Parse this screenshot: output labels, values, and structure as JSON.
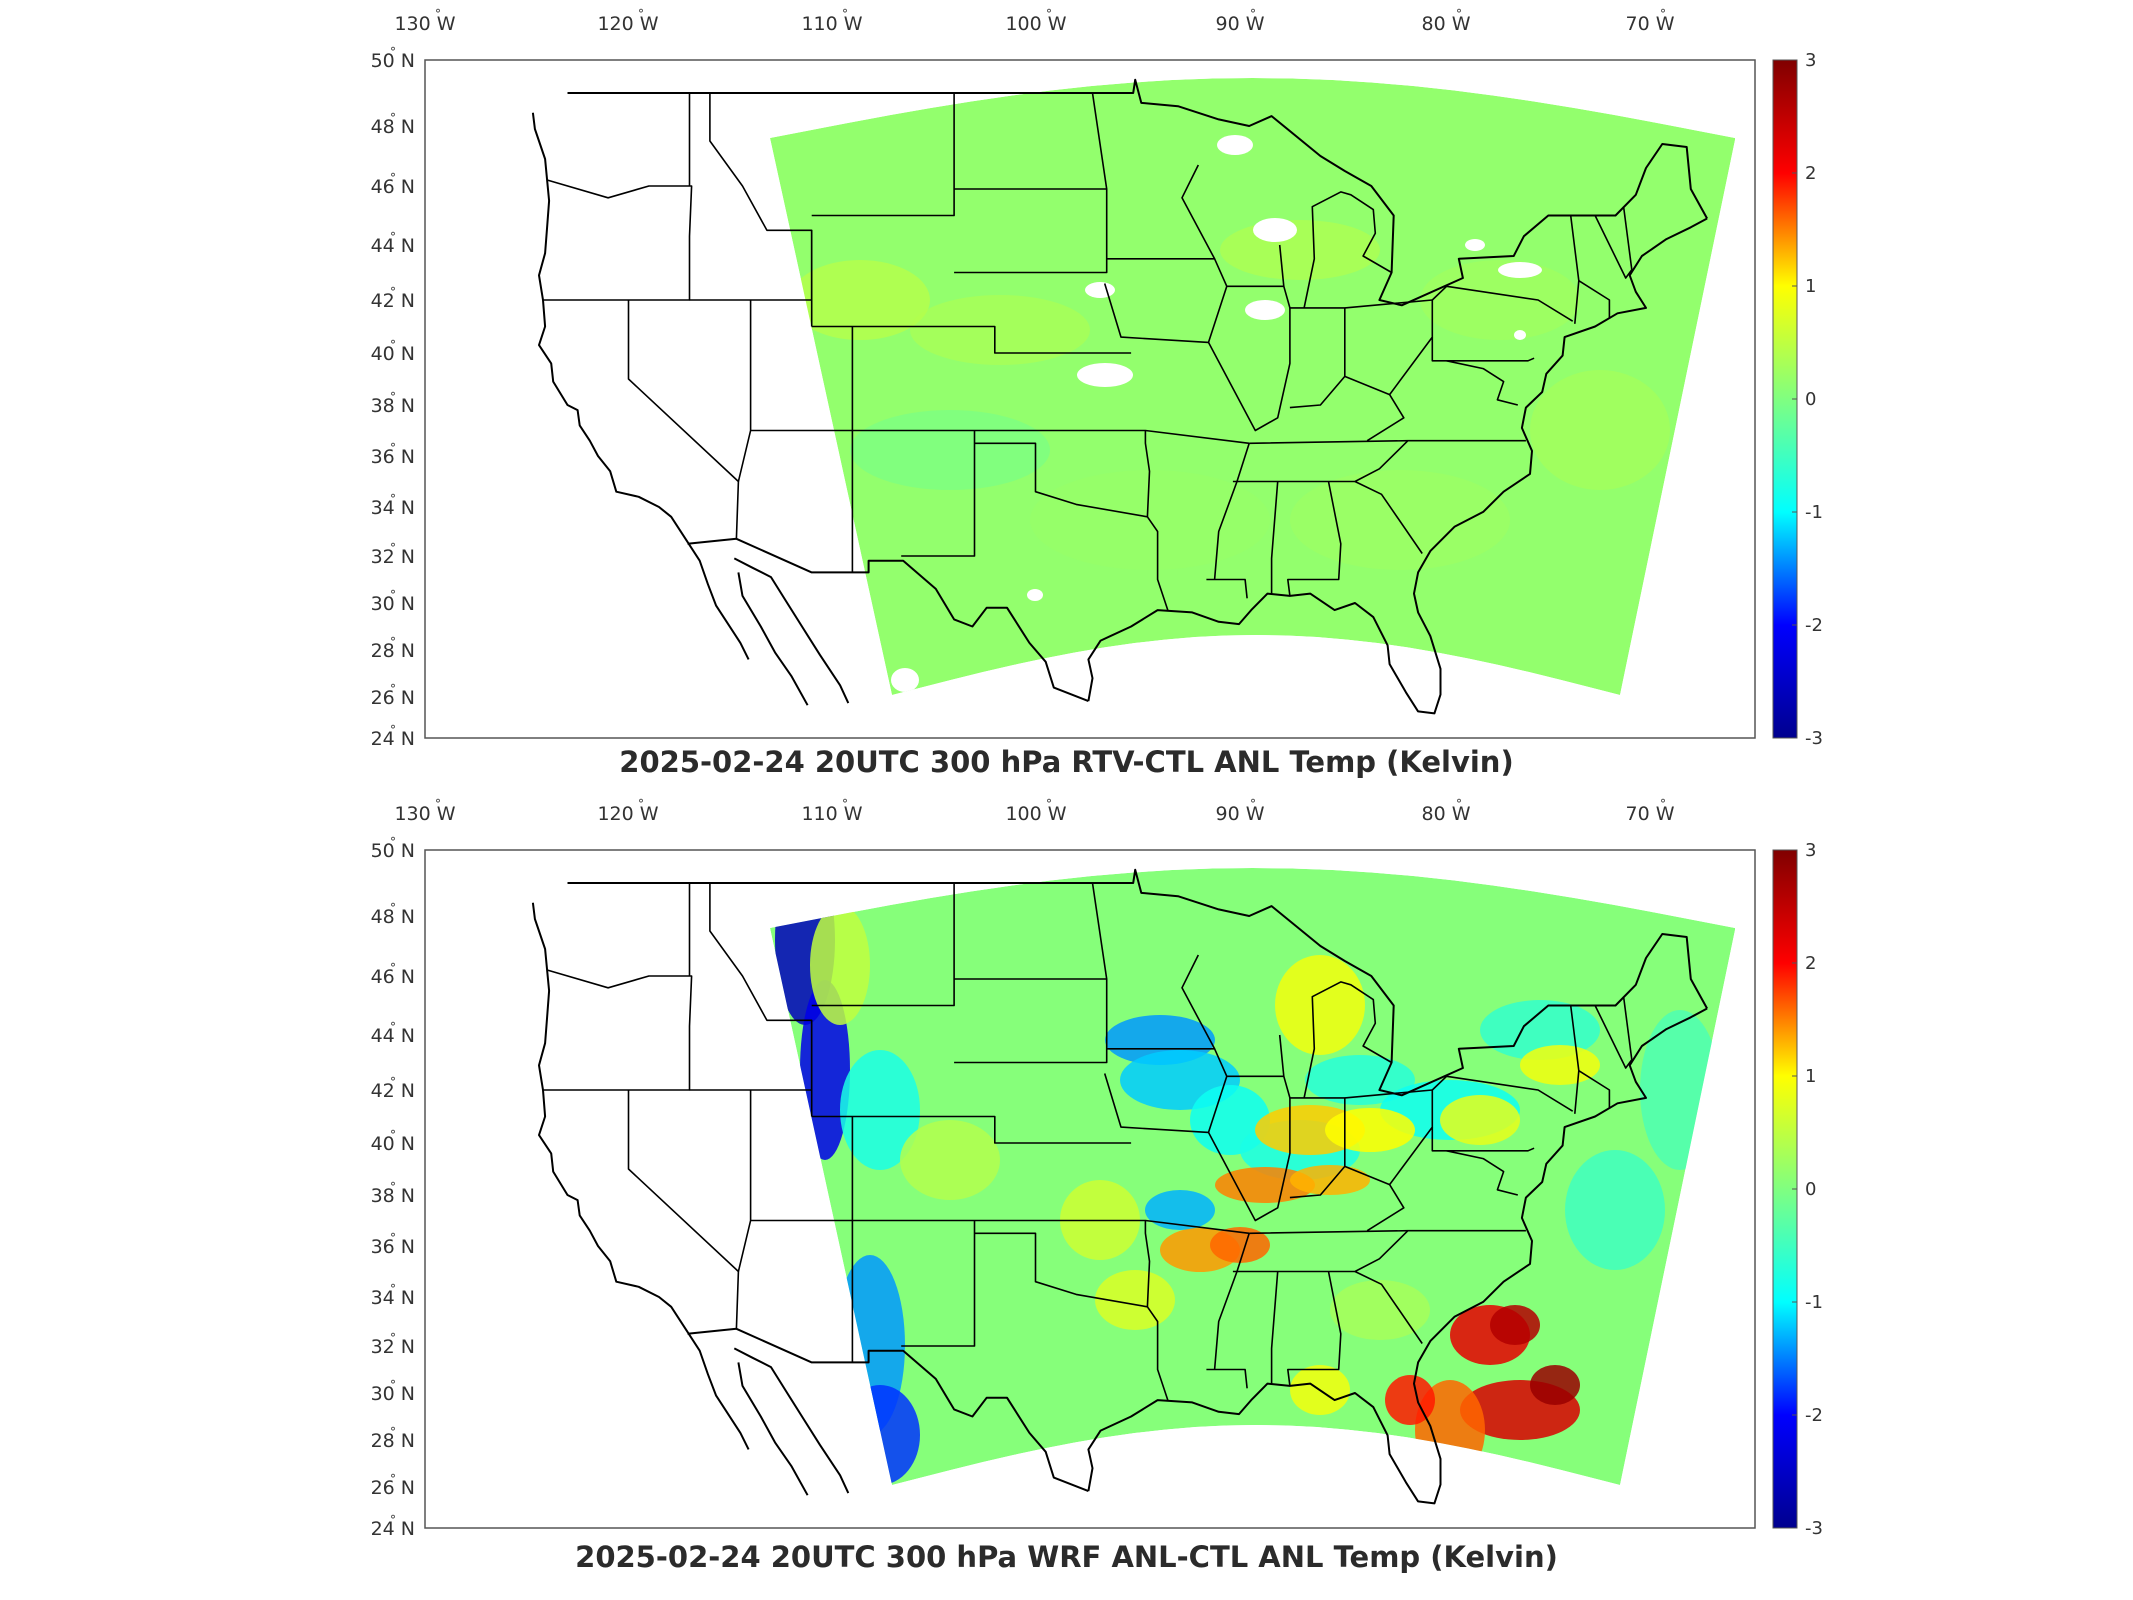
{
  "panels": [
    {
      "id": "top",
      "title": "2025-02-24 20UTC 300 hPa RTV-CTL ANL Temp (Kelvin)",
      "field": "near-zero",
      "lon_ticks": [
        "130",
        "120",
        "110",
        "100",
        "90",
        "80",
        "70"
      ],
      "lat_ticks": [
        "50",
        "48",
        "46",
        "44",
        "42",
        "40",
        "38",
        "36",
        "34",
        "32",
        "30",
        "28",
        "26",
        "24"
      ],
      "colorbar_ticks": [
        "3",
        "2",
        "1",
        "0",
        "-1",
        "-2",
        "-3"
      ]
    },
    {
      "id": "bottom",
      "title": "2025-02-24 20UTC 300 hPa WRF ANL-CTL ANL Temp (Kelvin)",
      "field": "structured",
      "lon_ticks": [
        "130",
        "120",
        "110",
        "100",
        "90",
        "80",
        "70"
      ],
      "lat_ticks": [
        "50",
        "48",
        "46",
        "44",
        "42",
        "40",
        "38",
        "36",
        "34",
        "32",
        "30",
        "28",
        "26",
        "24"
      ],
      "colorbar_ticks": [
        "3",
        "2",
        "1",
        "0",
        "-1",
        "-2",
        "-3"
      ]
    }
  ],
  "lon_suffix": "W",
  "lat_suffix": "N",
  "degree_symbol": "°",
  "colorbar": {
    "min": -3,
    "max": 3,
    "colormap": "jet",
    "stops": [
      "#00008f",
      "#0000ff",
      "#00ffff",
      "#80ff80",
      "#ffff00",
      "#ff0000",
      "#800000"
    ]
  }
}
